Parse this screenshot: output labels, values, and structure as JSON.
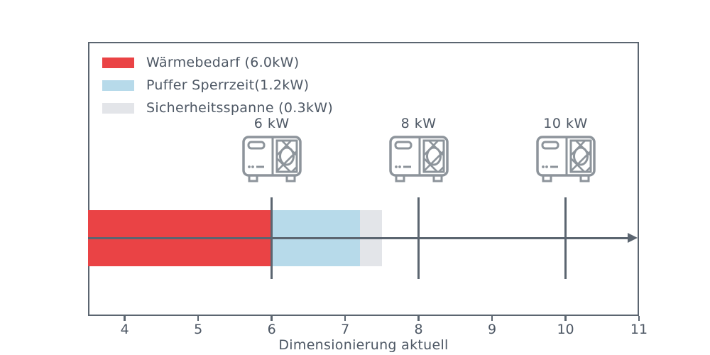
{
  "chart_data": {
    "type": "bar",
    "title": "",
    "xlabel": "Dimensionierung aktuell",
    "xlim": [
      3.5,
      11.0
    ],
    "xticks": [
      4,
      5,
      6,
      7,
      8,
      9,
      10,
      11
    ],
    "grid": false,
    "legend_position": "upper-left",
    "legend": [
      {
        "label": "Wärmebedarf (6.0kW)",
        "color": "#ea4345"
      },
      {
        "label": "Puffer Sperrzeit(1.2kW)",
        "color": "#b7daea"
      },
      {
        "label": "Sicherheitsspanne (0.3kW)",
        "color": "#e3e5e9"
      }
    ],
    "segments": [
      {
        "name": "Wärmebedarf",
        "value_kw": 6.0,
        "start": 3.5,
        "end": 6.0,
        "color": "#ea4345"
      },
      {
        "name": "Puffer Sperrzeit",
        "value_kw": 1.2,
        "start": 6.0,
        "end": 7.2,
        "color": "#b7daea"
      },
      {
        "name": "Sicherheitsspanne",
        "value_kw": 0.3,
        "start": 7.2,
        "end": 7.5,
        "color": "#e3e5e9"
      }
    ],
    "pump_markers": [
      {
        "x": 6,
        "label": "6 kW",
        "icon": "heat-pump-icon"
      },
      {
        "x": 8,
        "label": "8 kW",
        "icon": "heat-pump-icon"
      },
      {
        "x": 10,
        "label": "10 kW",
        "icon": "heat-pump-icon"
      }
    ],
    "colors": {
      "axis_line": "#5b6570",
      "text": "#4d5764",
      "icon_stroke": "#8d949b",
      "background": "#ffffff"
    }
  }
}
